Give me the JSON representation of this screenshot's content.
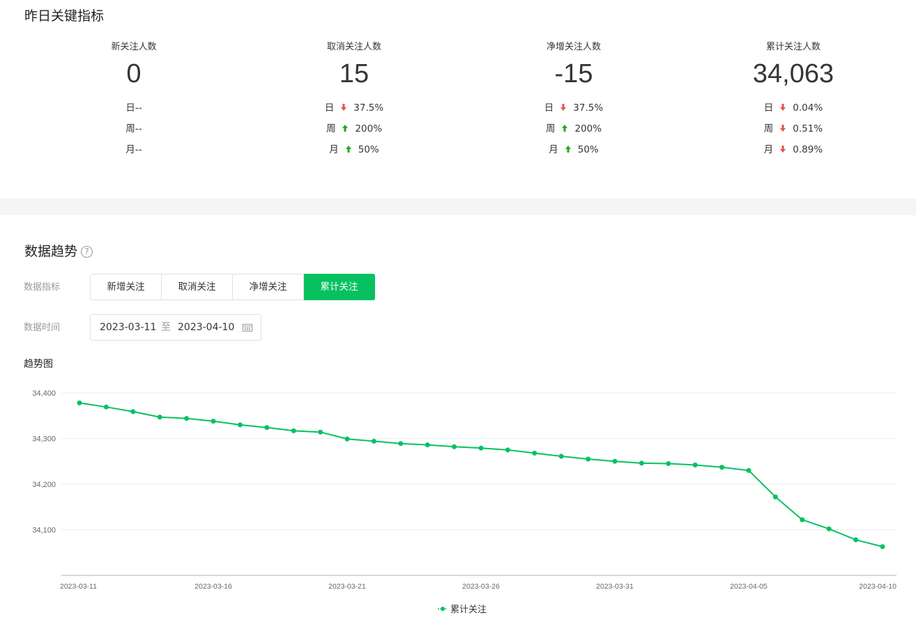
{
  "kpi_section": {
    "title": "昨日关键指标",
    "cards": [
      {
        "label": "新关注人数",
        "value": "0",
        "rows": [
          {
            "period": "日",
            "dir": "none",
            "pct": "--"
          },
          {
            "period": "周",
            "dir": "none",
            "pct": "--"
          },
          {
            "period": "月",
            "dir": "none",
            "pct": "--"
          }
        ]
      },
      {
        "label": "取消关注人数",
        "value": "15",
        "rows": [
          {
            "period": "日",
            "dir": "down",
            "pct": "37.5%"
          },
          {
            "period": "周",
            "dir": "up",
            "pct": "200%"
          },
          {
            "period": "月",
            "dir": "up",
            "pct": "50%"
          }
        ]
      },
      {
        "label": "净增关注人数",
        "value": "-15",
        "rows": [
          {
            "period": "日",
            "dir": "down",
            "pct": "37.5%"
          },
          {
            "period": "周",
            "dir": "up",
            "pct": "200%"
          },
          {
            "period": "月",
            "dir": "up",
            "pct": "50%"
          }
        ]
      },
      {
        "label": "累计关注人数",
        "value": "34,063",
        "rows": [
          {
            "period": "日",
            "dir": "down",
            "pct": "0.04%"
          },
          {
            "period": "周",
            "dir": "down",
            "pct": "0.51%"
          },
          {
            "period": "月",
            "dir": "down",
            "pct": "0.89%"
          }
        ]
      }
    ]
  },
  "trend_section": {
    "title": "数据趋势",
    "help_icon": "question-circle-icon",
    "help_glyph": "?",
    "metric_label": "数据指标",
    "metric_tabs": [
      {
        "label": "新增关注",
        "active": false
      },
      {
        "label": "取消关注",
        "active": false
      },
      {
        "label": "净增关注",
        "active": false
      },
      {
        "label": "累计关注",
        "active": true
      }
    ],
    "time_label": "数据时间",
    "date_start": "2023-03-11",
    "date_sep": "至",
    "date_end": "2023-04-10",
    "calendar_icon": "calendar-icon",
    "chart_title": "趋势图"
  },
  "colors": {
    "accent": "#07c160",
    "down": "#e9504c",
    "up": "#1aad19",
    "grid": "#eeeeee"
  },
  "chart_data": {
    "type": "line",
    "title": "趋势图",
    "x": [
      "2023-03-11",
      "2023-03-12",
      "2023-03-13",
      "2023-03-14",
      "2023-03-15",
      "2023-03-16",
      "2023-03-17",
      "2023-03-18",
      "2023-03-19",
      "2023-03-20",
      "2023-03-21",
      "2023-03-22",
      "2023-03-23",
      "2023-03-24",
      "2023-03-25",
      "2023-03-26",
      "2023-03-27",
      "2023-03-28",
      "2023-03-29",
      "2023-03-30",
      "2023-03-31",
      "2023-04-01",
      "2023-04-02",
      "2023-04-03",
      "2023-04-04",
      "2023-04-05",
      "2023-04-06",
      "2023-04-07",
      "2023-04-08",
      "2023-04-09",
      "2023-04-10"
    ],
    "x_ticks": [
      "2023-03-11",
      "2023-03-16",
      "2023-03-21",
      "2023-03-26",
      "2023-03-31",
      "2023-04-05",
      "2023-04-10"
    ],
    "series": [
      {
        "name": "累计关注",
        "values": [
          34378,
          34369,
          34359,
          34347,
          34344,
          34338,
          34330,
          34324,
          34317,
          34314,
          34299,
          34294,
          34289,
          34286,
          34282,
          34279,
          34275,
          34268,
          34261,
          34255,
          34250,
          34246,
          34245,
          34242,
          34237,
          34230,
          34172,
          34122,
          34102,
          34078,
          34063
        ]
      }
    ],
    "y_ticks": [
      34100,
      34200,
      34300,
      34400
    ],
    "y_tick_labels": [
      "34,100",
      "34,200",
      "34,300",
      "34,400"
    ],
    "ylim": [
      34000,
      34400
    ],
    "grid": true,
    "legend": "bottom-center"
  }
}
